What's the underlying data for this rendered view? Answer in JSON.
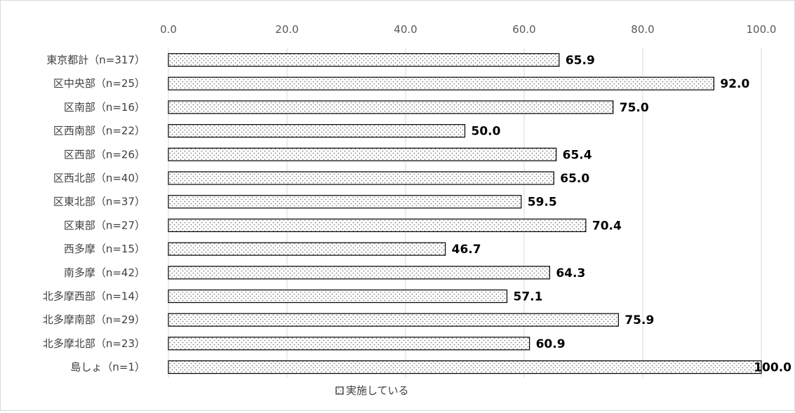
{
  "chart_data": {
    "type": "bar",
    "orientation": "horizontal",
    "categories": [
      "東京都計（n=317）",
      "区中央部（n=25）",
      "区南部（n=16）",
      "区西南部（n=22）",
      "区西部（n=26）",
      "区西北部（n=40）",
      "区東北部（n=37）",
      "区東部（n=27）",
      "西多摩（n=15）",
      "南多摩（n=42）",
      "北多摩西部（n=14）",
      "北多摩南部（n=29）",
      "北多摩北部（n=23）",
      "島しょ（n=1）"
    ],
    "series": [
      {
        "name": "実施している",
        "values": [
          65.9,
          92.0,
          75.0,
          50.0,
          65.4,
          65.0,
          59.5,
          70.4,
          46.7,
          64.3,
          57.1,
          75.9,
          60.9,
          100.0
        ],
        "labels": [
          "65.9",
          "92.0",
          "75.0",
          "50.0",
          "65.4",
          "65.0",
          "59.5",
          "70.4",
          "46.7",
          "64.3",
          "57.1",
          "75.9",
          "60.9",
          "100.0"
        ]
      }
    ],
    "x_ticks": [
      "0.0",
      "20.0",
      "40.0",
      "60.0",
      "80.0",
      "100.0"
    ],
    "x_tick_values": [
      0,
      20,
      40,
      60,
      80,
      100
    ],
    "xlim": [
      0,
      100
    ],
    "x_axis_position": "top",
    "grid": true,
    "legend_position": "bottom",
    "bar_pattern": "dotted",
    "colors": {
      "bar_fill": "#ffffff",
      "bar_dot": "#7f7f7f",
      "bar_border": "#000000",
      "grid": "#d9d9d9"
    }
  }
}
